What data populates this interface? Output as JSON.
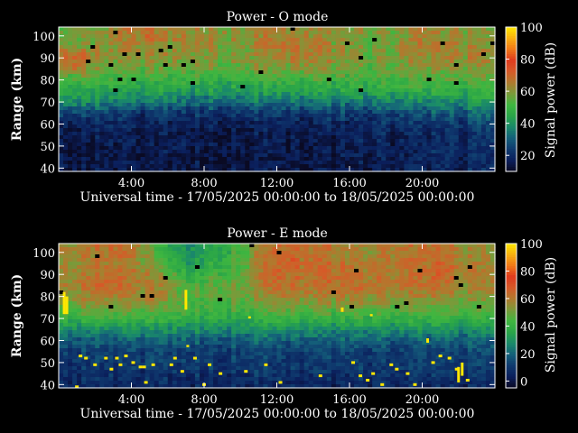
{
  "colormap": [
    "#0a0a23",
    "#0b1f5c",
    "#0f3a6e",
    "#14607a",
    "#1a8a6a",
    "#2aa548",
    "#3fb640",
    "#7a9a3a",
    "#b07a2e",
    "#d65a28",
    "#e03a1e",
    "#f07818",
    "#f8b010",
    "#ffe800"
  ],
  "chart_data": [
    {
      "type": "heatmap",
      "title": "Power - O mode",
      "xlabel": "Universal time - 17/05/2025 00:00:00 to 18/05/2025 00:00:00",
      "ylabel": "Range (km)",
      "xlim": [
        0,
        24
      ],
      "ylim": [
        38.5,
        104
      ],
      "xticks": [
        4,
        8,
        12,
        16,
        20
      ],
      "xtick_labels": [
        "4:00",
        "8:00",
        "12:00",
        "16:00",
        "20:00"
      ],
      "yticks": [
        40,
        50,
        60,
        70,
        80,
        90,
        100
      ],
      "ytick_labels": [
        "40",
        "50",
        "60",
        "70",
        "80",
        "90",
        "100"
      ],
      "colorbar": {
        "label": "Signal power (dB)",
        "range": [
          10,
          100
        ],
        "ticks": [
          20,
          40,
          60,
          80,
          100
        ],
        "tick_labels": [
          "20",
          "40",
          "60",
          "80",
          "100"
        ]
      },
      "time_hours": [
        0,
        1,
        2,
        3,
        4,
        5,
        6,
        7,
        8,
        9,
        10,
        11,
        12,
        13,
        14,
        15,
        16,
        17,
        18,
        19,
        20,
        21,
        22,
        23,
        24
      ],
      "range_km": [
        40,
        45,
        50,
        55,
        60,
        65,
        70,
        75,
        80,
        85,
        90,
        95,
        100
      ],
      "power_db": [
        [
          15,
          15,
          16,
          16,
          18,
          25,
          38,
          45,
          50,
          65,
          68,
          60,
          55
        ],
        [
          14,
          15,
          15,
          16,
          18,
          26,
          40,
          46,
          52,
          66,
          70,
          62,
          58
        ],
        [
          14,
          14,
          15,
          16,
          18,
          24,
          36,
          44,
          50,
          58,
          62,
          58,
          56
        ],
        [
          14,
          14,
          15,
          16,
          18,
          24,
          35,
          44,
          50,
          56,
          60,
          60,
          62
        ],
        [
          14,
          14,
          15,
          16,
          17,
          22,
          34,
          42,
          48,
          55,
          60,
          62,
          65
        ],
        [
          14,
          14,
          15,
          15,
          17,
          22,
          33,
          42,
          48,
          55,
          60,
          62,
          66
        ],
        [
          14,
          14,
          15,
          15,
          17,
          22,
          33,
          42,
          48,
          55,
          60,
          60,
          62
        ],
        [
          14,
          14,
          15,
          15,
          17,
          22,
          32,
          42,
          48,
          55,
          60,
          62,
          64
        ],
        [
          14,
          14,
          15,
          15,
          17,
          22,
          32,
          42,
          48,
          55,
          60,
          62,
          62
        ],
        [
          14,
          14,
          15,
          15,
          17,
          22,
          32,
          42,
          48,
          55,
          60,
          60,
          62
        ],
        [
          14,
          14,
          15,
          15,
          17,
          22,
          32,
          42,
          48,
          55,
          58,
          58,
          60
        ],
        [
          14,
          14,
          15,
          15,
          17,
          22,
          33,
          42,
          48,
          56,
          60,
          62,
          62
        ],
        [
          14,
          14,
          15,
          15,
          17,
          22,
          33,
          42,
          50,
          58,
          62,
          64,
          64
        ],
        [
          14,
          14,
          15,
          15,
          17,
          22,
          33,
          44,
          50,
          58,
          64,
          66,
          64
        ],
        [
          14,
          14,
          15,
          15,
          17,
          22,
          33,
          44,
          52,
          60,
          64,
          66,
          62
        ],
        [
          14,
          14,
          15,
          16,
          18,
          24,
          34,
          44,
          50,
          58,
          62,
          62,
          60
        ],
        [
          14,
          15,
          16,
          16,
          18,
          24,
          34,
          44,
          50,
          56,
          60,
          58,
          58
        ],
        [
          15,
          16,
          16,
          17,
          18,
          24,
          34,
          44,
          50,
          54,
          56,
          56,
          58
        ],
        [
          16,
          16,
          17,
          18,
          20,
          26,
          36,
          46,
          50,
          55,
          58,
          56,
          58
        ],
        [
          16,
          17,
          17,
          18,
          20,
          26,
          36,
          46,
          52,
          56,
          60,
          62,
          60
        ],
        [
          16,
          16,
          17,
          18,
          20,
          26,
          36,
          46,
          52,
          58,
          62,
          64,
          62
        ],
        [
          17,
          18,
          18,
          19,
          22,
          28,
          38,
          46,
          52,
          58,
          62,
          62,
          60
        ],
        [
          18,
          18,
          19,
          20,
          22,
          28,
          38,
          48,
          54,
          58,
          62,
          64,
          62
        ],
        [
          18,
          18,
          19,
          20,
          24,
          30,
          40,
          48,
          54,
          58,
          62,
          60,
          58
        ],
        [
          18,
          18,
          19,
          20,
          24,
          30,
          40,
          48,
          54,
          58,
          60,
          58,
          56
        ]
      ]
    },
    {
      "type": "heatmap",
      "title": "Power - E mode",
      "xlabel": "Universal time - 17/05/2025 00:00:00 to 18/05/2025 00:00:00",
      "ylabel": "Range (km)",
      "xlim": [
        0,
        24
      ],
      "ylim": [
        38.5,
        104
      ],
      "xticks": [
        4,
        8,
        12,
        16,
        20
      ],
      "xtick_labels": [
        "4:00",
        "8:00",
        "12:00",
        "16:00",
        "20:00"
      ],
      "yticks": [
        40,
        50,
        60,
        70,
        80,
        90,
        100
      ],
      "ytick_labels": [
        "40",
        "50",
        "60",
        "70",
        "80",
        "90",
        "100"
      ],
      "colorbar": {
        "label": "Signal power (dB)",
        "range": [
          -5,
          100
        ],
        "ticks": [
          0,
          20,
          40,
          60,
          80,
          100
        ],
        "tick_labels": [
          "0",
          "20",
          "40",
          "60",
          "80",
          "100"
        ]
      },
      "time_hours": [
        0,
        1,
        2,
        3,
        4,
        5,
        6,
        7,
        8,
        9,
        10,
        11,
        12,
        13,
        14,
        15,
        16,
        17,
        18,
        19,
        20,
        21,
        22,
        23,
        24
      ],
      "range_km": [
        40,
        45,
        50,
        55,
        60,
        65,
        70,
        75,
        80,
        85,
        90,
        95,
        100
      ],
      "power_db": [
        [
          5,
          8,
          10,
          12,
          18,
          28,
          40,
          48,
          52,
          58,
          56,
          54,
          56
        ],
        [
          5,
          8,
          10,
          12,
          18,
          28,
          40,
          50,
          56,
          60,
          58,
          56,
          58
        ],
        [
          5,
          8,
          10,
          12,
          18,
          28,
          42,
          52,
          58,
          64,
          60,
          58,
          60
        ],
        [
          5,
          8,
          10,
          12,
          18,
          28,
          40,
          50,
          58,
          64,
          62,
          60,
          62
        ],
        [
          5,
          8,
          10,
          12,
          18,
          28,
          40,
          50,
          56,
          60,
          60,
          58,
          60
        ],
        [
          5,
          8,
          10,
          12,
          18,
          28,
          40,
          50,
          56,
          58,
          56,
          52,
          50
        ],
        [
          5,
          8,
          10,
          12,
          18,
          28,
          40,
          48,
          52,
          52,
          48,
          40,
          36
        ],
        [
          5,
          8,
          10,
          12,
          18,
          28,
          38,
          44,
          46,
          44,
          38,
          32,
          30
        ],
        [
          5,
          8,
          10,
          12,
          18,
          28,
          38,
          44,
          46,
          46,
          42,
          36,
          34
        ],
        [
          5,
          8,
          10,
          12,
          18,
          28,
          38,
          44,
          48,
          48,
          44,
          40,
          38
        ],
        [
          5,
          8,
          10,
          12,
          18,
          28,
          38,
          44,
          48,
          50,
          48,
          44,
          44
        ],
        [
          5,
          8,
          10,
          12,
          18,
          28,
          38,
          46,
          52,
          56,
          58,
          56,
          58
        ],
        [
          5,
          8,
          10,
          12,
          18,
          28,
          40,
          50,
          58,
          62,
          64,
          64,
          62
        ],
        [
          5,
          8,
          10,
          12,
          18,
          28,
          40,
          50,
          58,
          62,
          64,
          66,
          64
        ],
        [
          5,
          8,
          10,
          12,
          18,
          28,
          40,
          48,
          56,
          60,
          62,
          62,
          60
        ],
        [
          5,
          8,
          10,
          12,
          18,
          28,
          40,
          50,
          58,
          62,
          64,
          62,
          60
        ],
        [
          5,
          8,
          10,
          12,
          18,
          28,
          40,
          50,
          58,
          62,
          62,
          60,
          58
        ],
        [
          5,
          8,
          10,
          12,
          18,
          28,
          40,
          48,
          56,
          60,
          60,
          58,
          56
        ],
        [
          5,
          8,
          10,
          12,
          18,
          28,
          40,
          48,
          56,
          60,
          60,
          60,
          58
        ],
        [
          5,
          8,
          10,
          12,
          18,
          28,
          40,
          48,
          56,
          62,
          62,
          62,
          60
        ],
        [
          5,
          8,
          10,
          12,
          18,
          28,
          40,
          48,
          56,
          60,
          60,
          60,
          60
        ],
        [
          5,
          8,
          10,
          12,
          18,
          28,
          40,
          48,
          56,
          62,
          64,
          64,
          62
        ],
        [
          5,
          8,
          10,
          12,
          18,
          28,
          40,
          48,
          54,
          58,
          60,
          60,
          58
        ],
        [
          5,
          8,
          10,
          12,
          18,
          28,
          38,
          46,
          52,
          56,
          58,
          56,
          54
        ],
        [
          5,
          8,
          10,
          12,
          18,
          28,
          38,
          46,
          52,
          56,
          56,
          54,
          52
        ]
      ],
      "spikes": [
        {
          "t": 0.3,
          "r0": 72,
          "r1": 82
        },
        {
          "t": 0.45,
          "r0": 72,
          "r1": 80
        },
        {
          "t": 7.0,
          "r0": 74,
          "r1": 83
        },
        {
          "t": 7.1,
          "r0": 57,
          "r1": 58
        },
        {
          "t": 10.5,
          "r0": 70,
          "r1": 71
        },
        {
          "t": 15.6,
          "r0": 73,
          "r1": 75
        },
        {
          "t": 17.2,
          "r0": 71,
          "r1": 72
        },
        {
          "t": 20.3,
          "r0": 59,
          "r1": 61
        },
        {
          "t": 22.0,
          "r0": 41,
          "r1": 48
        },
        {
          "t": 22.2,
          "r0": 44,
          "r1": 50
        }
      ],
      "noise_dots": [
        [
          1.2,
          53
        ],
        [
          1.5,
          52
        ],
        [
          2.0,
          49
        ],
        [
          2.6,
          52
        ],
        [
          2.9,
          47
        ],
        [
          3.2,
          52
        ],
        [
          3.4,
          49
        ],
        [
          3.7,
          53
        ],
        [
          4.1,
          50
        ],
        [
          4.5,
          48
        ],
        [
          4.7,
          48
        ],
        [
          5.2,
          49
        ],
        [
          6.2,
          49
        ],
        [
          6.4,
          52
        ],
        [
          6.8,
          46
        ],
        [
          7.5,
          52
        ],
        [
          8.3,
          49
        ],
        [
          8.9,
          45
        ],
        [
          10.3,
          46
        ],
        [
          11.4,
          49
        ],
        [
          14.4,
          44
        ],
        [
          16.2,
          50
        ],
        [
          16.6,
          44
        ],
        [
          17.0,
          42
        ],
        [
          17.3,
          45
        ],
        [
          17.8,
          40
        ],
        [
          18.3,
          49
        ],
        [
          18.6,
          47
        ],
        [
          19.2,
          45
        ],
        [
          20.6,
          50
        ],
        [
          21.0,
          53
        ],
        [
          21.5,
          52
        ],
        [
          21.9,
          47
        ],
        [
          22.5,
          42
        ],
        [
          1.0,
          39
        ],
        [
          4.8,
          41
        ],
        [
          8.0,
          40
        ],
        [
          12.2,
          41
        ],
        [
          19.6,
          40
        ]
      ]
    }
  ]
}
